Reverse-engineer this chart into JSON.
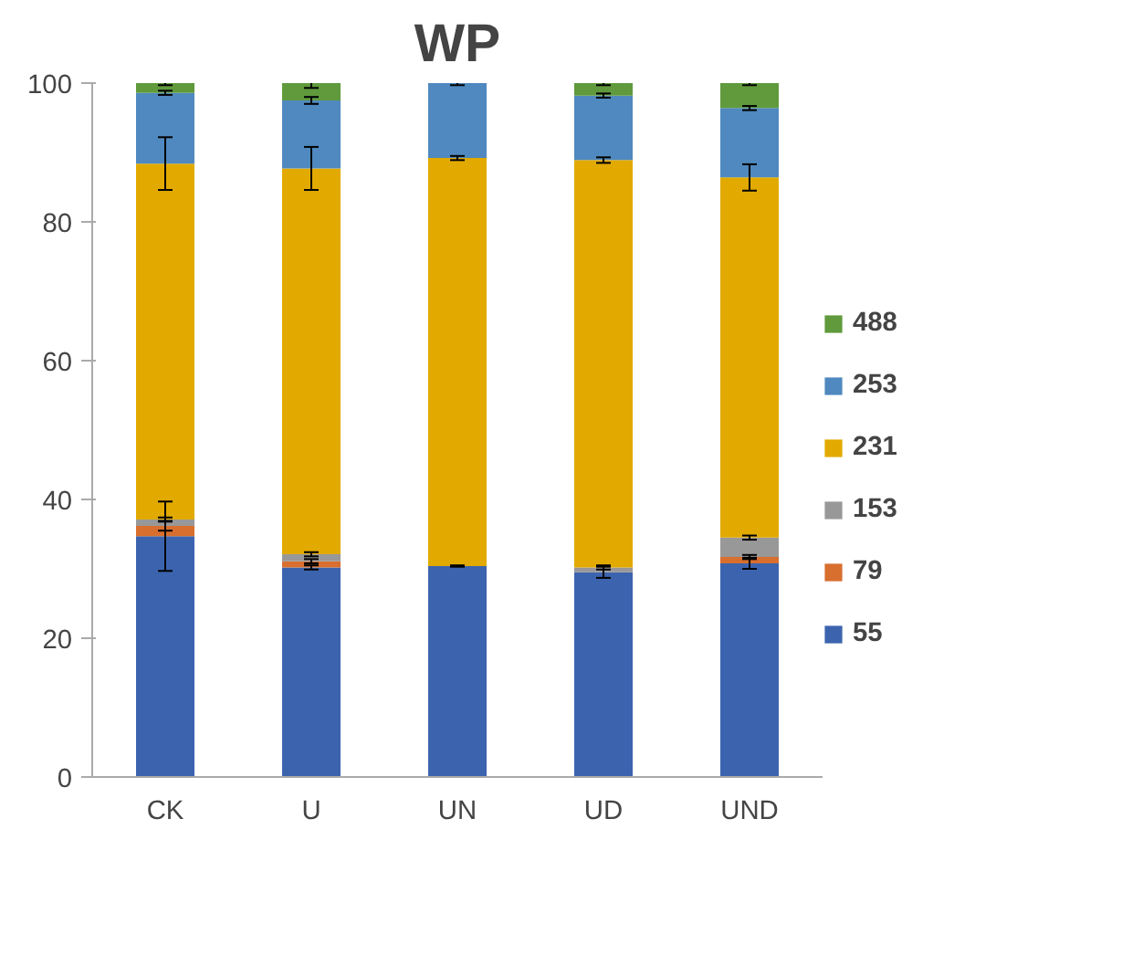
{
  "chart_data": {
    "type": "bar",
    "stacked": true,
    "title": "WP",
    "categories": [
      "CK",
      "U",
      "UN",
      "UD",
      "UND"
    ],
    "series": [
      {
        "name": "55",
        "color": "#3c64ae",
        "values": [
          34.7,
          30.2,
          30.4,
          29.5,
          30.8
        ],
        "errors": [
          5.0,
          0.3,
          0.1,
          0.8,
          0.8
        ]
      },
      {
        "name": "79",
        "color": "#d86f2f",
        "values": [
          1.5,
          0.9,
          0,
          0,
          0.9
        ],
        "errors": [
          0.7,
          0.3,
          null,
          null,
          0.3
        ]
      },
      {
        "name": "153",
        "color": "#989898",
        "values": [
          0.9,
          1.0,
          0,
          0.7,
          2.8
        ],
        "errors": [
          0.3,
          0.3,
          null,
          0.3,
          0.3
        ]
      },
      {
        "name": "231",
        "color": "#e2aa00",
        "values": [
          51.3,
          55.6,
          58.8,
          58.7,
          51.9
        ],
        "errors": [
          3.8,
          3.1,
          0.3,
          0.4,
          1.9
        ]
      },
      {
        "name": "253",
        "color": "#4f89bf",
        "values": [
          10.2,
          9.8,
          10.8,
          9.3,
          10.0
        ],
        "errors": [
          0.3,
          0.5,
          0.3,
          0.3,
          0.3
        ]
      },
      {
        "name": "488",
        "color": "#609a3c",
        "values": [
          1.4,
          2.5,
          0,
          1.8,
          3.6
        ],
        "errors": [
          0.3,
          0.7,
          null,
          0.3,
          0.3
        ]
      }
    ],
    "ylim": [
      0,
      100
    ],
    "yticks": [
      0,
      20,
      40,
      60,
      80,
      100
    ],
    "grid": false,
    "legend": "right"
  }
}
